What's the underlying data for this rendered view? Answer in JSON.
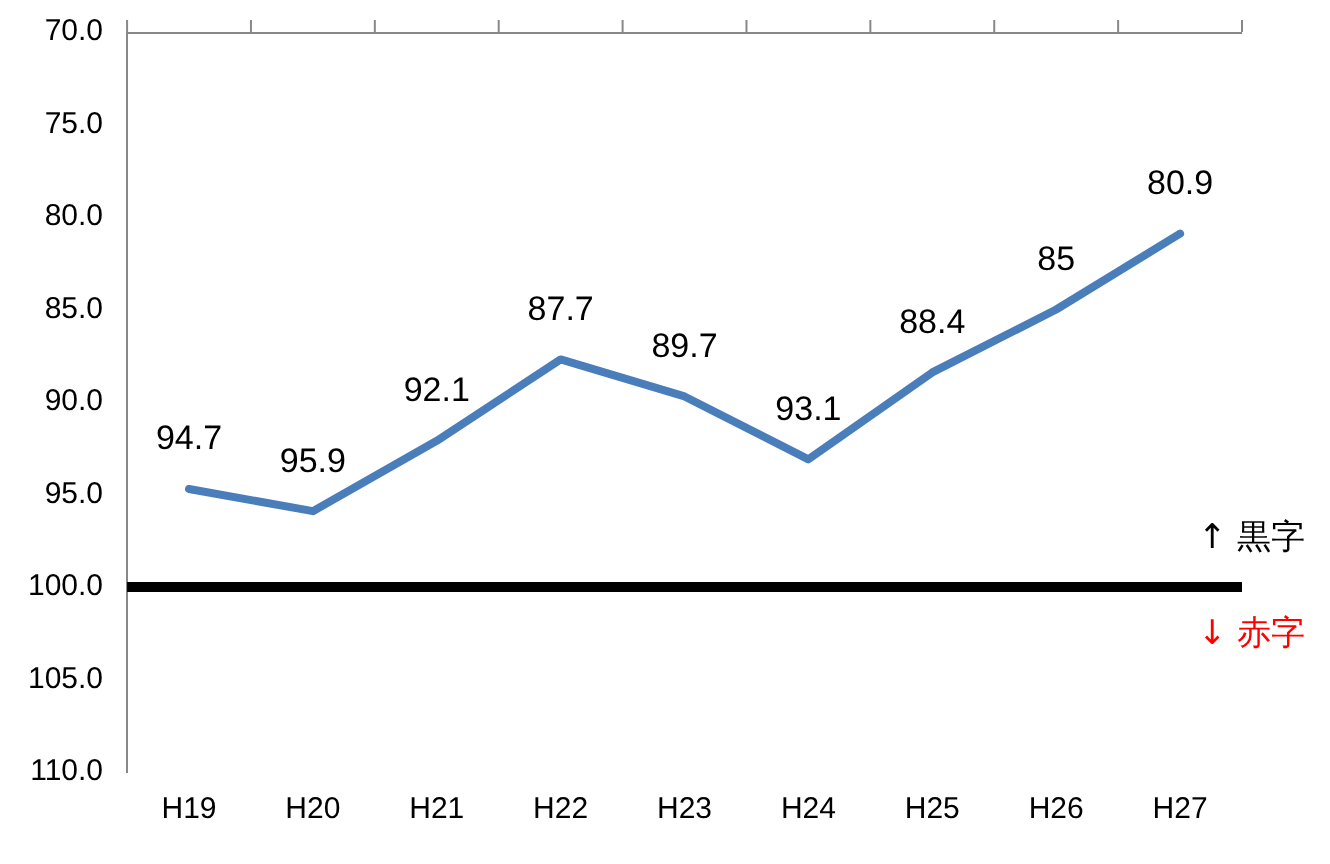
{
  "chart_data": {
    "type": "line",
    "categories": [
      "H19",
      "H20",
      "H21",
      "H22",
      "H23",
      "H24",
      "H25",
      "H26",
      "H27"
    ],
    "series": [
      {
        "color": "#4a7ebb",
        "values": [
          94.7,
          95.9,
          92.1,
          87.7,
          89.7,
          93.1,
          88.4,
          85,
          80.9
        ]
      }
    ],
    "ylim": [
      110,
      70
    ],
    "yticks": [
      {
        "value": 70,
        "label": "70.0"
      },
      {
        "value": 75,
        "label": "75.0"
      },
      {
        "value": 80,
        "label": "80.0"
      },
      {
        "value": 85,
        "label": "85.0"
      },
      {
        "value": 90,
        "label": "90.0"
      },
      {
        "value": 95,
        "label": "95.0"
      },
      {
        "value": 100,
        "label": "100.0"
      },
      {
        "value": 105,
        "label": "105.0"
      },
      {
        "value": 110,
        "label": "110.0"
      }
    ],
    "ref_lines": [
      {
        "axis": "y",
        "value": 100,
        "color": "#000000"
      }
    ],
    "annotations": [
      "↑ 黒字",
      "↓ 赤字"
    ],
    "data_labels": true,
    "grid": false,
    "legend": false,
    "marker": "none"
  }
}
